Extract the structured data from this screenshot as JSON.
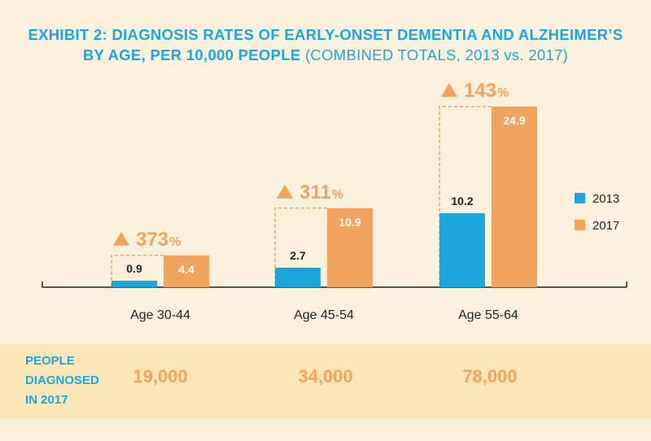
{
  "title": {
    "line1": "EXHIBIT 2: DIAGNOSIS RATES OF EARLY-ONSET DEMENTIA AND ALZHEIMER’S",
    "line2_bold": "BY AGE, PER 10,000 PEOPLE",
    "line2_sub": "(COMBINED TOTALS, 2013 vs. 2017)"
  },
  "colors": {
    "s2013": "#1ba7dd",
    "s2017": "#f2a35e",
    "accent": "#f0a359",
    "band": "#fbe6b7"
  },
  "chart_data": {
    "type": "bar",
    "categories": [
      "Age 30-44",
      "Age 45-54",
      "Age 55-64"
    ],
    "series": [
      {
        "name": "2013",
        "values": [
          0.9,
          2.7,
          10.2
        ]
      },
      {
        "name": "2017",
        "values": [
          4.4,
          10.9,
          24.9
        ]
      }
    ],
    "data_labels": {
      "2013": [
        "0.9",
        "2.7",
        "10.2"
      ],
      "2017": [
        "4.4",
        "10.9",
        "24.9"
      ]
    },
    "increase_labels": [
      "373",
      "311",
      "143"
    ],
    "percent_sign": "%",
    "ylim": [
      0,
      24.9
    ],
    "legend_position": "right"
  },
  "band": {
    "label": "PEOPLE\nDIAGNOSED\nIN 2017",
    "values": [
      "19,000",
      "34,000",
      "78,000"
    ]
  }
}
